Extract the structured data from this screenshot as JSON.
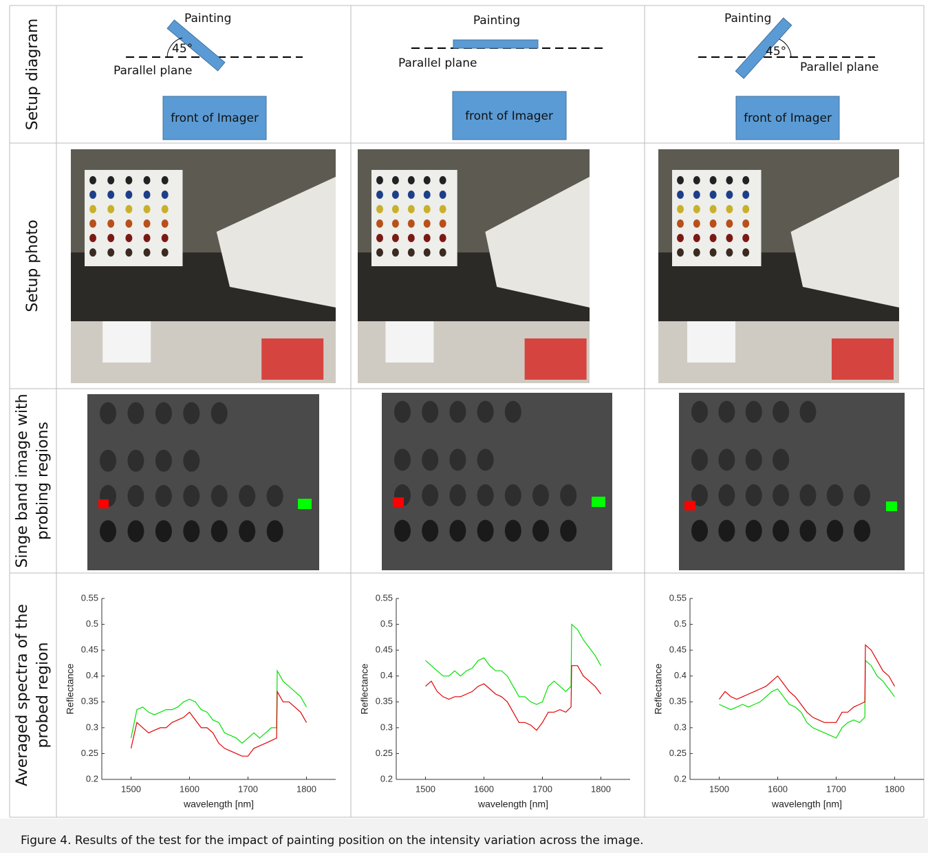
{
  "row_labels": [
    [
      "Setup diagram"
    ],
    [
      "Setup photo"
    ],
    [
      "Singe band image with",
      "probing regions"
    ],
    [
      "Averaged spectra of the",
      "probed region"
    ]
  ],
  "diagrams": [
    {
      "painting": "Painting",
      "angle": "45°",
      "plane": "Parallel plane",
      "imager": "front of Imager"
    },
    {
      "painting": "Painting",
      "plane": "Parallel plane",
      "imager": "front of Imager"
    },
    {
      "painting": "Painting",
      "angle": "45°",
      "plane": "Parallel plane",
      "imager": "front of Imager"
    }
  ],
  "chart_data": [
    {
      "type": "line",
      "xlabel": "wavelength [nm]",
      "ylabel": "Reflectance",
      "x": [
        1500,
        1510,
        1520,
        1530,
        1540,
        1550,
        1560,
        1570,
        1580,
        1590,
        1600,
        1610,
        1620,
        1630,
        1640,
        1650,
        1660,
        1670,
        1680,
        1690,
        1700,
        1710,
        1720,
        1730,
        1740,
        1749,
        1750,
        1760,
        1770,
        1780,
        1790,
        1800
      ],
      "series": [
        {
          "color": "#00e000",
          "values": [
            0.28,
            0.335,
            0.34,
            0.33,
            0.325,
            0.33,
            0.335,
            0.335,
            0.34,
            0.35,
            0.355,
            0.35,
            0.335,
            0.33,
            0.315,
            0.31,
            0.29,
            0.285,
            0.28,
            0.27,
            0.28,
            0.29,
            0.28,
            0.29,
            0.3,
            0.3,
            0.41,
            0.39,
            0.38,
            0.37,
            0.36,
            0.34
          ]
        },
        {
          "color": "#e00000",
          "values": [
            0.26,
            0.31,
            0.3,
            0.29,
            0.295,
            0.3,
            0.3,
            0.31,
            0.315,
            0.32,
            0.33,
            0.315,
            0.3,
            0.3,
            0.29,
            0.27,
            0.26,
            0.255,
            0.25,
            0.245,
            0.245,
            0.26,
            0.265,
            0.27,
            0.275,
            0.28,
            0.37,
            0.35,
            0.35,
            0.34,
            0.33,
            0.31
          ]
        }
      ],
      "xlim": [
        1450,
        1850
      ],
      "ylim": [
        0.2,
        0.55
      ],
      "xticks": [
        1500,
        1600,
        1700,
        1800
      ],
      "yticks": [
        0.2,
        0.25,
        0.3,
        0.35,
        0.4,
        0.45,
        0.5,
        0.55
      ]
    },
    {
      "type": "line",
      "xlabel": "wavelength [nm]",
      "ylabel": "Reflectance",
      "x": [
        1500,
        1510,
        1520,
        1530,
        1540,
        1550,
        1560,
        1570,
        1580,
        1590,
        1600,
        1610,
        1620,
        1630,
        1640,
        1650,
        1660,
        1670,
        1680,
        1690,
        1700,
        1710,
        1720,
        1730,
        1740,
        1749,
        1750,
        1760,
        1770,
        1780,
        1790,
        1800
      ],
      "series": [
        {
          "color": "#00e000",
          "values": [
            0.43,
            0.42,
            0.41,
            0.4,
            0.4,
            0.41,
            0.4,
            0.41,
            0.415,
            0.43,
            0.435,
            0.42,
            0.41,
            0.41,
            0.4,
            0.38,
            0.36,
            0.36,
            0.35,
            0.345,
            0.35,
            0.38,
            0.39,
            0.38,
            0.37,
            0.38,
            0.5,
            0.49,
            0.47,
            0.455,
            0.44,
            0.42
          ]
        },
        {
          "color": "#e00000",
          "values": [
            0.38,
            0.39,
            0.37,
            0.36,
            0.355,
            0.36,
            0.36,
            0.365,
            0.37,
            0.38,
            0.385,
            0.375,
            0.365,
            0.36,
            0.35,
            0.33,
            0.31,
            0.31,
            0.305,
            0.295,
            0.31,
            0.33,
            0.33,
            0.335,
            0.33,
            0.34,
            0.42,
            0.42,
            0.4,
            0.39,
            0.38,
            0.365
          ]
        }
      ],
      "xlim": [
        1450,
        1850
      ],
      "ylim": [
        0.2,
        0.55
      ],
      "xticks": [
        1500,
        1600,
        1700,
        1800
      ],
      "yticks": [
        0.2,
        0.25,
        0.3,
        0.35,
        0.4,
        0.45,
        0.5,
        0.55
      ]
    },
    {
      "type": "line",
      "xlabel": "wavelength [nm]",
      "ylabel": "Reflectance",
      "x": [
        1500,
        1510,
        1520,
        1530,
        1540,
        1550,
        1560,
        1570,
        1580,
        1590,
        1600,
        1610,
        1620,
        1630,
        1640,
        1650,
        1660,
        1670,
        1680,
        1690,
        1700,
        1710,
        1720,
        1730,
        1740,
        1749,
        1750,
        1760,
        1770,
        1780,
        1790,
        1800
      ],
      "series": [
        {
          "color": "#00e000",
          "values": [
            0.345,
            0.34,
            0.335,
            0.34,
            0.345,
            0.34,
            0.345,
            0.35,
            0.36,
            0.37,
            0.375,
            0.36,
            0.345,
            0.34,
            0.33,
            0.31,
            0.3,
            0.295,
            0.29,
            0.285,
            0.28,
            0.3,
            0.31,
            0.315,
            0.31,
            0.32,
            0.43,
            0.42,
            0.4,
            0.39,
            0.375,
            0.36
          ]
        },
        {
          "color": "#e00000",
          "values": [
            0.355,
            0.37,
            0.36,
            0.355,
            0.36,
            0.365,
            0.37,
            0.375,
            0.38,
            0.39,
            0.4,
            0.385,
            0.37,
            0.36,
            0.345,
            0.33,
            0.32,
            0.315,
            0.31,
            0.31,
            0.31,
            0.33,
            0.33,
            0.34,
            0.345,
            0.35,
            0.46,
            0.45,
            0.43,
            0.41,
            0.4,
            0.38
          ]
        }
      ],
      "xlim": [
        1450,
        1850
      ],
      "ylim": [
        0.2,
        0.55
      ],
      "xticks": [
        1500,
        1600,
        1700,
        1800
      ],
      "yticks": [
        0.2,
        0.25,
        0.3,
        0.35,
        0.4,
        0.45,
        0.5,
        0.55
      ]
    }
  ],
  "caption": "Figure 4. Results of the test for the impact of painting position on the intensity variation across the image."
}
